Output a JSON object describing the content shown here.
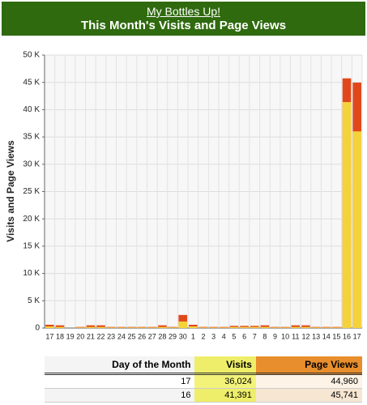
{
  "header": {
    "link": "My Bottles Up!",
    "title": "This Month's Visits and Page Views"
  },
  "chart_data": {
    "type": "bar",
    "y_label": "Visits and Page Views",
    "categories": [
      "17",
      "18",
      "19",
      "20",
      "21",
      "22",
      "23",
      "24",
      "25",
      "26",
      "27",
      "28",
      "29",
      "30",
      "1",
      "2",
      "3",
      "4",
      "5",
      "6",
      "7",
      "8",
      "9",
      "10",
      "11",
      "12",
      "13",
      "14",
      "15",
      "16",
      "17"
    ],
    "series": [
      {
        "name": "Page Views",
        "color": "#e0481c",
        "values": [
          600,
          500,
          0,
          200,
          500,
          500,
          200,
          200,
          200,
          200,
          200,
          500,
          200,
          2400,
          600,
          200,
          200,
          200,
          400,
          400,
          400,
          500,
          200,
          200,
          500,
          500,
          200,
          200,
          200,
          45741,
          44960
        ]
      },
      {
        "name": "Visits",
        "color": "#f4d23c",
        "values": [
          300,
          200,
          0,
          100,
          200,
          200,
          100,
          100,
          100,
          100,
          100,
          200,
          100,
          1200,
          300,
          100,
          100,
          100,
          200,
          200,
          200,
          200,
          100,
          100,
          200,
          200,
          100,
          100,
          100,
          41391,
          36024
        ]
      }
    ],
    "ylim": [
      0,
      50000
    ],
    "yticks": [
      0,
      {
        "value": 5000,
        "label": "5 K"
      },
      {
        "value": 10000,
        "label": "10 K"
      },
      {
        "value": 15000,
        "label": "15 K"
      },
      {
        "value": 20000,
        "label": "20 K"
      },
      {
        "value": 25000,
        "label": "25 K"
      },
      {
        "value": 30000,
        "label": "30 K"
      },
      {
        "value": 35000,
        "label": "35 K"
      },
      {
        "value": 40000,
        "label": "40 K"
      },
      {
        "value": 45000,
        "label": "45 K"
      },
      {
        "value": 50000,
        "label": "50 K"
      }
    ],
    "grid": true
  },
  "table": {
    "header": [
      "Day of the Month",
      "Visits",
      "Page Views"
    ],
    "rows": [
      [
        "17",
        "36,024",
        "44,960"
      ],
      [
        "16",
        "41,391",
        "45,741"
      ]
    ]
  }
}
